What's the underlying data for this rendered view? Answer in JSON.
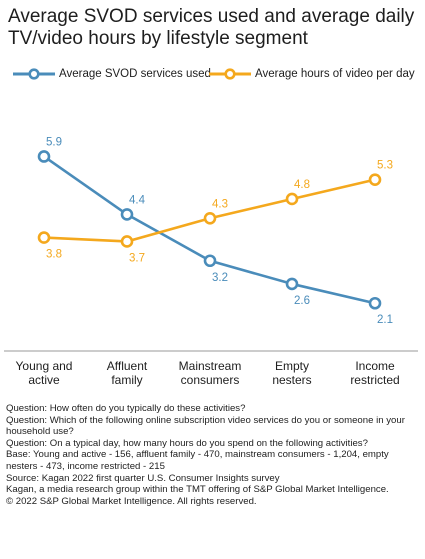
{
  "chart_data": {
    "type": "line",
    "title": "Average SVOD services used and average daily TV/video hours by lifestyle segment",
    "categories": [
      [
        "Young and",
        "active"
      ],
      [
        "Affluent",
        "family"
      ],
      [
        "Mainstream",
        "consumers"
      ],
      [
        "Empty",
        "nesters"
      ],
      [
        "Income",
        "restricted"
      ]
    ],
    "series": [
      {
        "name": "Average SVOD services used",
        "color": "#4a8cba",
        "values": [
          5.9,
          4.4,
          3.2,
          2.6,
          2.1
        ],
        "value_labels": [
          "5.9",
          "4.4",
          "3.2",
          "2.6",
          "2.1"
        ],
        "label_position": "above,above,below,below,below"
      },
      {
        "name": "Average hours of video per day",
        "color": "#f4a81d",
        "values": [
          3.8,
          3.7,
          4.3,
          4.8,
          5.3
        ],
        "value_labels": [
          "3.8",
          "3.7",
          "4.3",
          "4.8",
          "5.3"
        ],
        "label_position": "below,below,above,above,above"
      }
    ],
    "ylim": [
      1.2,
      7.0
    ],
    "grid": false,
    "legend_placement": "top-left"
  },
  "notes": [
    "Question: How often do you typically do these activities?",
    "Question: Which of the following online subscription video services do you or someone in your household use?",
    "Question: On a typical day, how many hours do you spend on the following activities?",
    "Base: Young and active - 156, affluent family - 470, mainstream consumers - 1,204, empty nesters - 473, income restricted - 215",
    "Source: Kagan 2022 first quarter U.S. Consumer Insights survey",
    "Kagan, a media research group within the TMT offering of S&P Global Market Intelligence.",
    "© 2022 S&P Global Market Intelligence. All rights reserved."
  ]
}
